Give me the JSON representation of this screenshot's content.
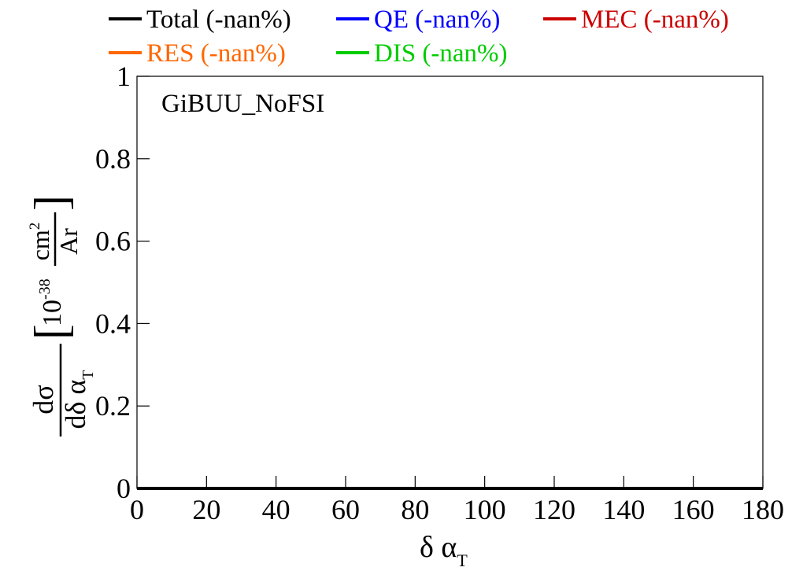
{
  "chart_data": {
    "type": "line",
    "annotation": "GiBUU_NoFSI",
    "xlim": [
      0,
      180
    ],
    "ylim": [
      0,
      1
    ],
    "x_ticks": [
      0,
      20,
      40,
      60,
      80,
      100,
      120,
      140,
      160,
      180
    ],
    "y_ticks": [
      0,
      0.2,
      0.4,
      0.6,
      0.8,
      1
    ],
    "xlabel": {
      "main": "δ α",
      "sub": "T"
    },
    "ylabel": {
      "numerator": "dσ",
      "denominator": "dδ α",
      "denominator_sub": "T",
      "unit_base": "10",
      "unit_exp": "-38",
      "unit_num": "cm",
      "unit_num_exp": "2",
      "unit_den": "Ar"
    },
    "legend_position": "top",
    "grid": false,
    "series": [
      {
        "name": "Total (-nan%)",
        "color": "#000000",
        "x": [
          0,
          180
        ],
        "y": [
          0,
          0
        ]
      },
      {
        "name": "QE (-nan%)",
        "color": "#0000ff",
        "x": [],
        "y": []
      },
      {
        "name": "MEC (-nan%)",
        "color": "#cc0000",
        "x": [],
        "y": []
      },
      {
        "name": "RES (-nan%)",
        "color": "#ff6600",
        "x": [],
        "y": []
      },
      {
        "name": "DIS (-nan%)",
        "color": "#00cc00",
        "x": [],
        "y": []
      }
    ]
  }
}
